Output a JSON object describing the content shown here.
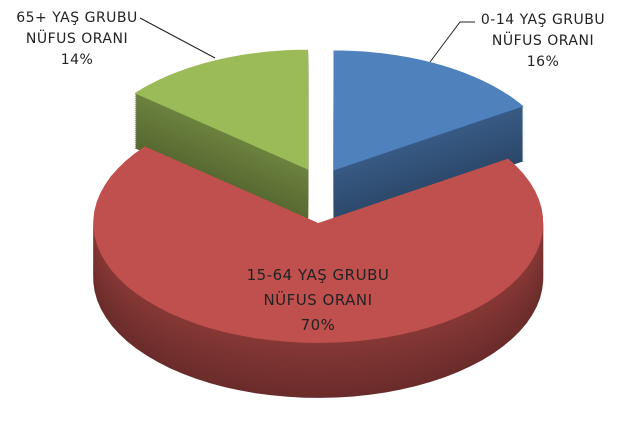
{
  "chart_data": {
    "type": "pie3d",
    "categories": [
      "0-14 YAŞ GRUBU NÜFUS ORANI",
      "15-64 YAŞ GRUBU NÜFUS ORANI",
      "65+ YAŞ GRUBU NÜFUS ORANI"
    ],
    "values": [
      16,
      70,
      14
    ],
    "value_labels": [
      "16%",
      "70%",
      "14%"
    ],
    "colors": [
      "#4f81bd",
      "#c0504d",
      "#9bbb59"
    ]
  }
}
